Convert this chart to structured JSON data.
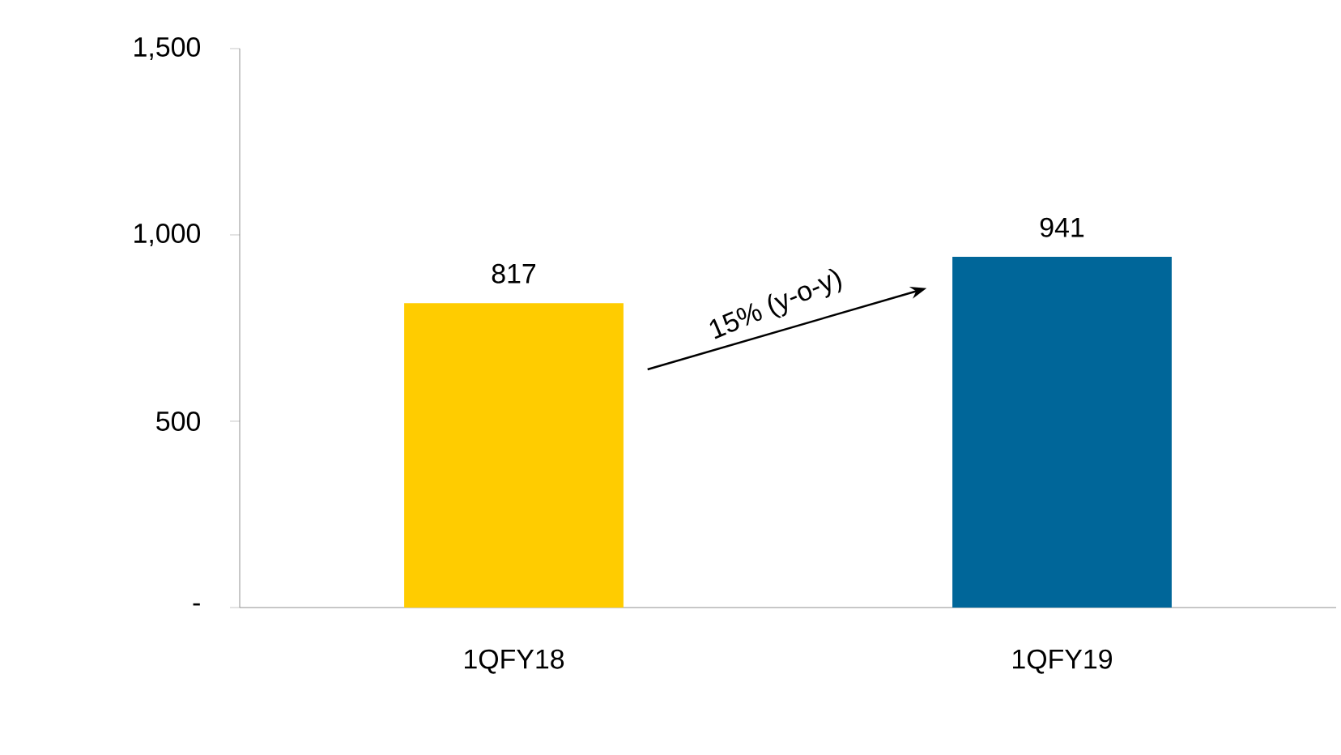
{
  "chart_data": {
    "type": "bar",
    "categories": [
      "1QFY18",
      "1QFY19"
    ],
    "values": [
      817,
      941
    ],
    "colors": [
      "#ffcc00",
      "#006699"
    ],
    "ylim": [
      0,
      1500
    ],
    "yticks": [
      {
        "value": 0,
        "label": "-"
      },
      {
        "value": 500,
        "label": "500"
      },
      {
        "value": 1000,
        "label": "1,000"
      },
      {
        "value": 1500,
        "label": "1,500"
      }
    ],
    "data_labels": true,
    "grid": false,
    "annotations": [
      "15% (y-o-y)"
    ]
  }
}
